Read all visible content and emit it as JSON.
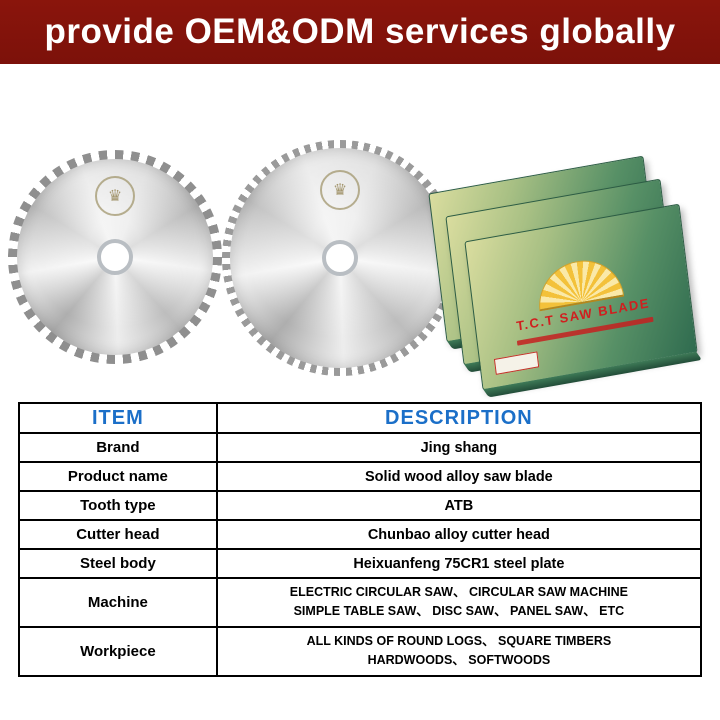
{
  "banner": {
    "title": "provide OEM&ODM services globally",
    "bg_color": "#8a150c",
    "text_color": "#ffffff"
  },
  "showcase": {
    "box_title": "T.C.T SAW BLADE",
    "box_color": "#579066",
    "box_title_color": "#d01f1f"
  },
  "table": {
    "header_color": "#1b6fc8",
    "headers": [
      "ITEM",
      "DESCRIPTION"
    ],
    "rows": [
      {
        "item": "Brand",
        "desc": "Jing shang"
      },
      {
        "item": "Product name",
        "desc": "Solid wood alloy saw blade"
      },
      {
        "item": "Tooth type",
        "desc": "ATB"
      },
      {
        "item": "Cutter head",
        "desc": "Chunbao alloy cutter head"
      },
      {
        "item": "Steel body",
        "desc": "Heixuanfeng 75CR1 steel plate"
      },
      {
        "item": "Machine",
        "desc": "ELECTRIC CIRCULAR SAW、 CIRCULAR SAW MACHINE\nSIMPLE TABLE SAW、 DISC SAW、 PANEL SAW、 ETC"
      },
      {
        "item": "Workpiece",
        "desc": "ALL KINDS OF ROUND LOGS、 SQUARE TIMBERS\nHARDWOODS、 SOFTWOODS"
      }
    ]
  }
}
